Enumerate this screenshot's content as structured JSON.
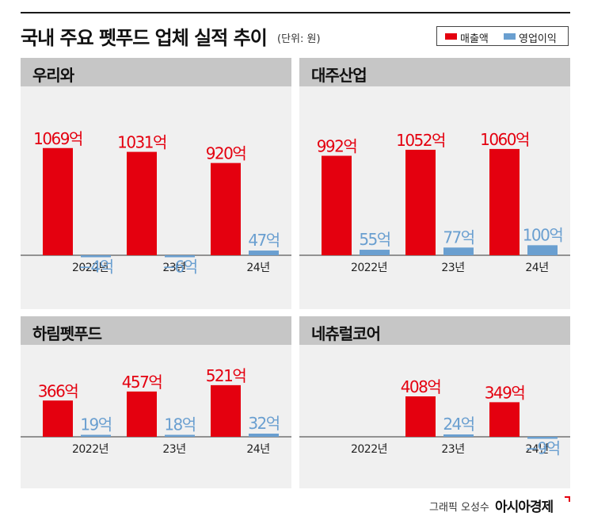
{
  "title": "국내 주요 펫푸드 업체 실적 추이",
  "unit_note": "(단위: 원)",
  "legend": [
    {
      "label": "매출액",
      "color": "#e4000f"
    },
    {
      "label": "영업이익",
      "color": "#6a9fd0"
    }
  ],
  "colors": {
    "revenue": "#e4000f",
    "profit": "#6a9fd0",
    "panel_bg": "#f0f0f0",
    "panel_header": "#c6c6c6"
  },
  "credit": "그래픽 오성수",
  "brand": "아시아경제",
  "chart_data": [
    {
      "type": "bar",
      "title": "우리와",
      "categories": [
        "2022년",
        "23년",
        "24년"
      ],
      "series": [
        {
          "name": "매출액",
          "values": [
            1069,
            1031,
            920
          ],
          "labels": [
            "1069억",
            "1031억",
            "920억"
          ]
        },
        {
          "name": "영업이익",
          "values": [
            -4,
            -6,
            47
          ],
          "labels": [
            "−4억",
            "−6억",
            "47억"
          ]
        }
      ]
    },
    {
      "type": "bar",
      "title": "대주산업",
      "categories": [
        "2022년",
        "23년",
        "24년"
      ],
      "series": [
        {
          "name": "매출액",
          "values": [
            992,
            1052,
            1060
          ],
          "labels": [
            "992억",
            "1052억",
            "1060억"
          ]
        },
        {
          "name": "영업이익",
          "values": [
            55,
            77,
            100
          ],
          "labels": [
            "55억",
            "77억",
            "100억"
          ]
        }
      ]
    },
    {
      "type": "bar",
      "title": "하림펫푸드",
      "categories": [
        "2022년",
        "23년",
        "24년"
      ],
      "series": [
        {
          "name": "매출액",
          "values": [
            366,
            457,
            521
          ],
          "labels": [
            "366억",
            "457억",
            "521억"
          ]
        },
        {
          "name": "영업이익",
          "values": [
            19,
            18,
            32
          ],
          "labels": [
            "19억",
            "18억",
            "32억"
          ]
        }
      ]
    },
    {
      "type": "bar",
      "title": "네츄럴코어",
      "categories": [
        "2022년",
        "23년",
        "24년"
      ],
      "series": [
        {
          "name": "매출액",
          "values": [
            null,
            408,
            349
          ],
          "labels": [
            "",
            "408억",
            "349억"
          ]
        },
        {
          "name": "영업이익",
          "values": [
            null,
            24,
            -9
          ],
          "labels": [
            "",
            "24억",
            "−9억"
          ]
        }
      ]
    }
  ]
}
